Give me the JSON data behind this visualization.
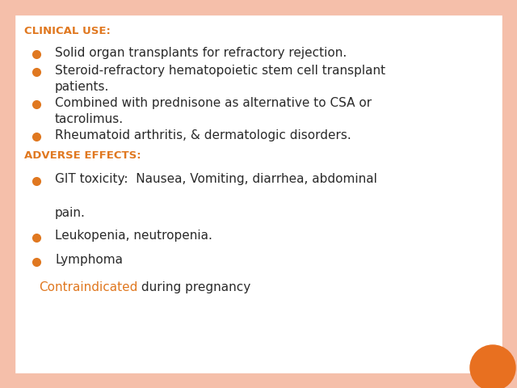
{
  "background_color": "#ffffff",
  "border_color": "#f5bfaa",
  "title1": "CLINICAL USE",
  "title1_suffix": ":",
  "title1_color": "#e07820",
  "title2": "ADVERSE EFFECTS:",
  "title2_color": "#e07820",
  "bullet_color": "#e07820",
  "text_color": "#2a2a2a",
  "clinical_bullets": [
    [
      "Solid organ transplants for refractory rejection."
    ],
    [
      "Steroid-refractory hematopoietic stem cell transplant",
      "patients."
    ],
    [
      "Combined with prednisone as alternative to CSA or",
      "tacrolimus."
    ],
    [
      "Rheumatoid arthritis, & dermatologic disorders."
    ]
  ],
  "adverse_bullets": [
    [
      "GIT toxicity:  Nausea, Vomiting, diarrhea, abdominal",
      "",
      "pain."
    ],
    [
      "Leukopenia, neutropenia."
    ],
    [
      "Lymphoma"
    ]
  ],
  "contraindicated_orange": "Contraindicated",
  "contraindicated_rest": " during pregnancy",
  "contraindicated_color": "#e07820",
  "circle_color": "#e87020",
  "font_size_title": 9.5,
  "font_size_bullet": 11,
  "font_size_contraindicated": 11
}
